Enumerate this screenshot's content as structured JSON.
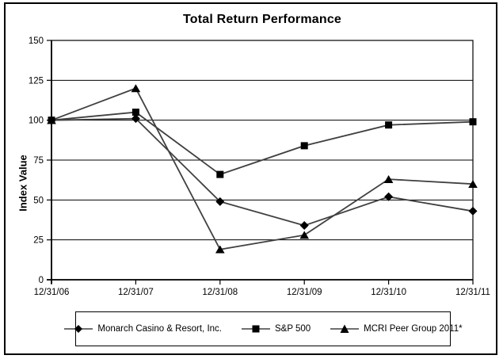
{
  "window": {
    "background": "#ffffff",
    "frame_border_color": "#000000"
  },
  "chart_data": {
    "type": "line",
    "title": "Total Return Performance",
    "xlabel": "",
    "ylabel": "Index Value",
    "categories": [
      "12/31/06",
      "12/31/07",
      "12/31/08",
      "12/31/09",
      "12/31/10",
      "12/31/11"
    ],
    "y_ticks": [
      0,
      25,
      50,
      75,
      100,
      125,
      150
    ],
    "ylim": [
      0,
      150
    ],
    "grid": true,
    "legend_position": "bottom",
    "line_color": "#404040",
    "marker_color": "#000000",
    "axis_color": "#000000",
    "series": [
      {
        "name": "Monarch Casino & Resort, Inc.",
        "marker": "diamond",
        "values": [
          100,
          101,
          49,
          34,
          52,
          43
        ]
      },
      {
        "name": "S&P 500",
        "marker": "square",
        "values": [
          100,
          105,
          66,
          84,
          97,
          99
        ]
      },
      {
        "name": "MCRI Peer Group 2011*",
        "marker": "triangle",
        "values": [
          100,
          120,
          19,
          28,
          63,
          60
        ]
      }
    ]
  }
}
